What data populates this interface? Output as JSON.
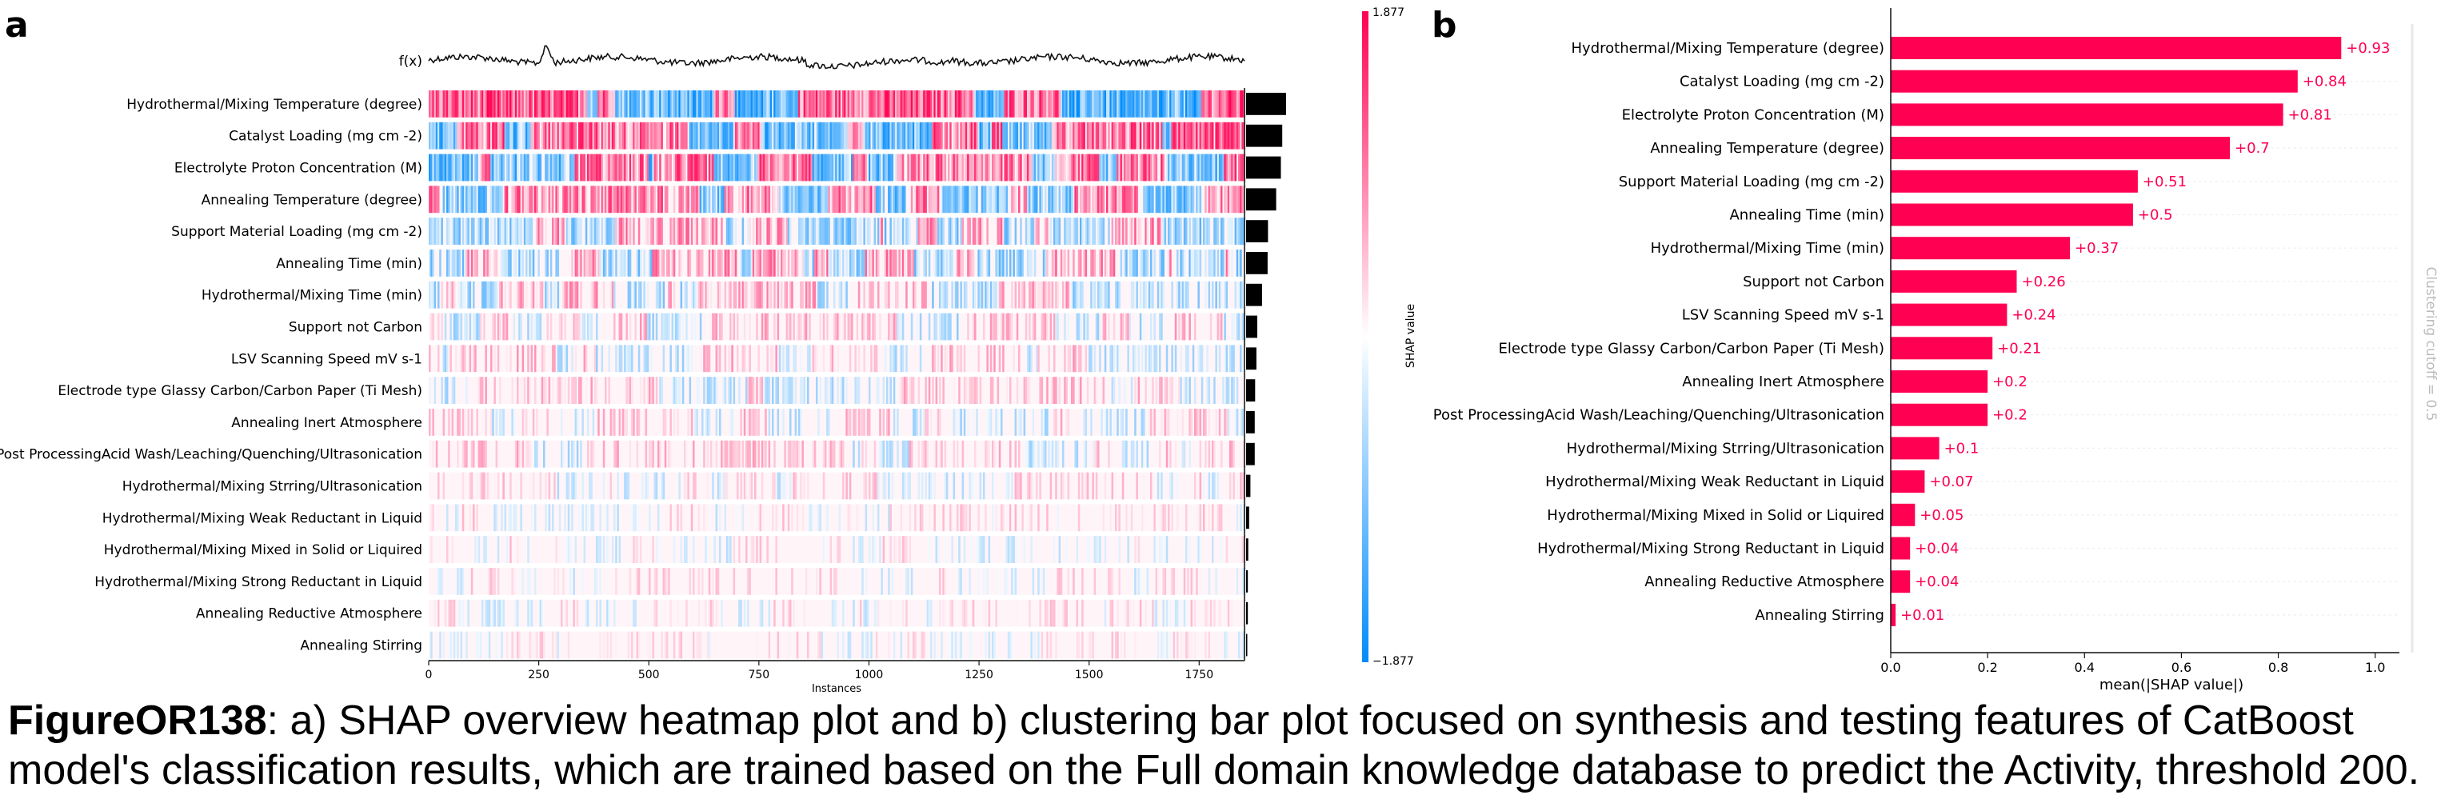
{
  "panel_labels": [
    "a",
    "b"
  ],
  "caption": {
    "label": "FigureOR138",
    "text": ": a) SHAP overview heatmap plot and b) clustering bar plot focused on synthesis and testing features of CatBoost model's classification results, which are trained based on the Full domain knowledge database to predict the Activity, threshold 200."
  },
  "chart_data": [
    {
      "type": "heatmap",
      "fx_label": "f(x)",
      "xlabel": "Instances",
      "x_ticks": [
        0,
        250,
        500,
        750,
        1000,
        1250,
        1500,
        1750
      ],
      "x_range": [
        0,
        1853
      ],
      "colorbar": {
        "label": "SHAP value",
        "max_label": "1.877",
        "min_label": "−1.877",
        "max": 1.877,
        "min": -1.877,
        "colors": {
          "positive": "#ff0052",
          "neutral": "#ffffff",
          "negative": "#008bfb"
        }
      },
      "features": [
        {
          "name": "Hydrothermal/Mixing Temperature (degree)",
          "importance": 0.93
        },
        {
          "name": "Catalyst Loading (mg cm -2)",
          "importance": 0.84
        },
        {
          "name": "Electrolyte Proton Concentration (M)",
          "importance": 0.81
        },
        {
          "name": "Annealing Temperature (degree)",
          "importance": 0.7
        },
        {
          "name": "Support Material Loading (mg cm -2)",
          "importance": 0.51
        },
        {
          "name": "Annealing Time (min)",
          "importance": 0.5
        },
        {
          "name": "Hydrothermal/Mixing Time (min)",
          "importance": 0.37
        },
        {
          "name": "Support not Carbon",
          "importance": 0.26
        },
        {
          "name": "LSV Scanning Speed mV s-1",
          "importance": 0.24
        },
        {
          "name": "Electrode type Glassy Carbon/Carbon Paper (Ti Mesh)",
          "importance": 0.21
        },
        {
          "name": "Annealing Inert Atmosphere",
          "importance": 0.2
        },
        {
          "name": "Post ProcessingAcid Wash/Leaching/Quenching/Ultrasonication",
          "importance": 0.2
        },
        {
          "name": "Hydrothermal/Mixing Strring/Ultrasonication",
          "importance": 0.1
        },
        {
          "name": "Hydrothermal/Mixing Weak Reductant in Liquid",
          "importance": 0.07
        },
        {
          "name": "Hydrothermal/Mixing Mixed in Solid or Liquired",
          "importance": 0.05
        },
        {
          "name": "Hydrothermal/Mixing Strong Reductant in Liquid",
          "importance": 0.04
        },
        {
          "name": "Annealing Reductive Atmosphere",
          "importance": 0.04
        },
        {
          "name": "Annealing Stirring",
          "importance": 0.01
        }
      ]
    },
    {
      "type": "bar",
      "orientation": "horizontal",
      "categories": [
        "Hydrothermal/Mixing Temperature (degree)",
        "Catalyst Loading (mg cm -2)",
        "Electrolyte Proton Concentration (M)",
        "Annealing Temperature (degree)",
        "Support Material Loading (mg cm -2)",
        "Annealing Time (min)",
        "Hydrothermal/Mixing Time (min)",
        "Support not Carbon",
        "LSV Scanning Speed mV s-1",
        "Electrode type Glassy Carbon/Carbon Paper (Ti Mesh)",
        "Annealing Inert Atmosphere",
        "Post ProcessingAcid Wash/Leaching/Quenching/Ultrasonication",
        "Hydrothermal/Mixing Strring/Ultrasonication",
        "Hydrothermal/Mixing Weak Reductant in Liquid",
        "Hydrothermal/Mixing Mixed in Solid or Liquired",
        "Hydrothermal/Mixing Strong Reductant in Liquid",
        "Annealing Reductive Atmosphere",
        "Annealing Stirring"
      ],
      "values": [
        0.93,
        0.84,
        0.81,
        0.7,
        0.51,
        0.5,
        0.37,
        0.26,
        0.24,
        0.21,
        0.2,
        0.2,
        0.1,
        0.07,
        0.05,
        0.04,
        0.04,
        0.01
      ],
      "value_labels": [
        "+0.93",
        "+0.84",
        "+0.81",
        "+0.7",
        "+0.51",
        "+0.5",
        "+0.37",
        "+0.26",
        "+0.24",
        "+0.21",
        "+0.2",
        "+0.2",
        "+0.1",
        "+0.07",
        "+0.05",
        "+0.04",
        "+0.04",
        "+0.01"
      ],
      "xlabel": "mean(|SHAP value|)",
      "x_ticks": [
        "0.0",
        "0.2",
        "0.4",
        "0.6",
        "0.8",
        "1.0"
      ],
      "xlim": [
        0,
        1.05
      ],
      "side_label": "Clustering cutoff = 0.5",
      "bar_color": "#ff0052"
    }
  ]
}
